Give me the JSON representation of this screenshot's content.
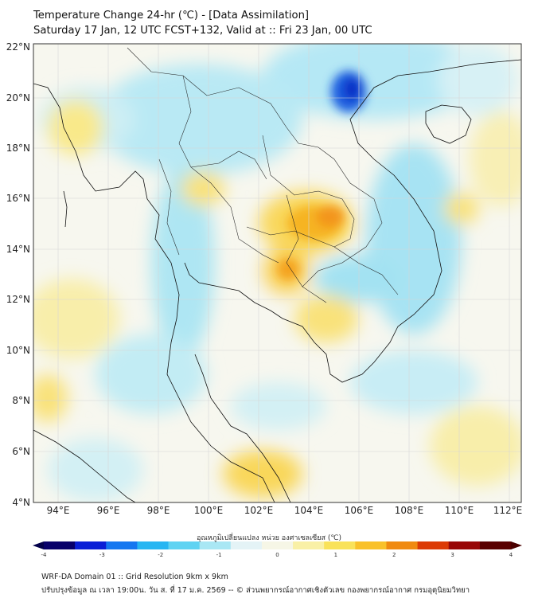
{
  "title": {
    "line1": "Temperature Change 24-hr (℃) - [Data Assimilation]",
    "line2": "Saturday 17 Jan, 12 UTC FCST+132, Valid at :: Fri 23 Jan, 00 UTC"
  },
  "map": {
    "lat_range": [
      4,
      22
    ],
    "lon_range": [
      93,
      112.5
    ],
    "lat_ticks": [
      "22°N",
      "20°N",
      "18°N",
      "16°N",
      "14°N",
      "12°N",
      "10°N",
      "8°N",
      "6°N",
      "4°N"
    ],
    "lon_ticks": [
      "94°E",
      "96°E",
      "98°E",
      "100°E",
      "102°E",
      "104°E",
      "106°E",
      "108°E",
      "110°E",
      "112°E"
    ]
  },
  "colorbar": {
    "label": "อุณหภูมิเปลี่ยนแปลง หน่วย องศาเซลเซียส (℃)",
    "min": -4,
    "max": 4,
    "ticks": [
      "-4",
      "-3",
      "-2",
      "-1",
      "0",
      "1",
      "2",
      "3",
      "4"
    ],
    "colors": [
      "#08006a",
      "#0a1fd6",
      "#1577f0",
      "#27b6f2",
      "#5fd3f2",
      "#a9e7f4",
      "#e4f3f6",
      "#f6f6e6",
      "#f9f0a6",
      "#f9e25a",
      "#f9c12a",
      "#f08a10",
      "#dc3a05",
      "#980707",
      "#5a0000"
    ]
  },
  "footer": {
    "line1": "WRF-DA Domain 01 :: Grid Resolution 9km x 9km",
    "line2": "ปรับปรุงข้อมูล ณ เวลา 19:00น. วัน ส. ที่ 17 ม.ค. 2569 -- © ส่วนพยากรณ์อากาศเชิงตัวเลข กองพยากรณ์อากาศ กรมอุตุนิยมวิทยา"
  }
}
